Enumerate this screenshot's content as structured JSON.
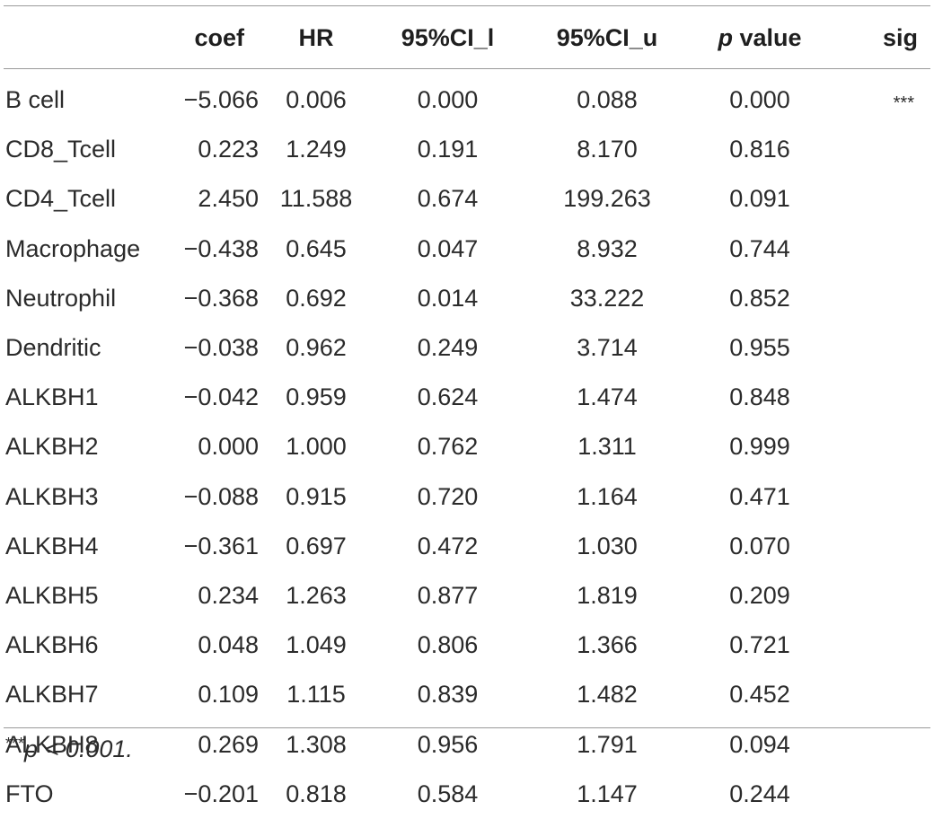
{
  "table": {
    "headers": {
      "name": "",
      "coef": "coef",
      "hr": "HR",
      "ci_l": "95%CI_l",
      "ci_u": "95%CI_u",
      "p_italic": "p",
      "p_rest": " value",
      "sig": "sig"
    },
    "rows": [
      {
        "name": "B cell",
        "coef": "−5.066",
        "hr": "0.006",
        "ci_l": "0.000",
        "ci_u": "0.088",
        "p": "0.000",
        "sig": "***"
      },
      {
        "name": "CD8_Tcell",
        "coef": "0.223",
        "hr": "1.249",
        "ci_l": "0.191",
        "ci_u": "8.170",
        "p": "0.816",
        "sig": ""
      },
      {
        "name": "CD4_Tcell",
        "coef": "2.450",
        "hr": "11.588",
        "ci_l": "0.674",
        "ci_u": "199.263",
        "p": "0.091",
        "sig": ""
      },
      {
        "name": "Macrophage",
        "coef": "−0.438",
        "hr": "0.645",
        "ci_l": "0.047",
        "ci_u": "8.932",
        "p": "0.744",
        "sig": ""
      },
      {
        "name": "Neutrophil",
        "coef": "−0.368",
        "hr": "0.692",
        "ci_l": "0.014",
        "ci_u": "33.222",
        "p": "0.852",
        "sig": ""
      },
      {
        "name": "Dendritic",
        "coef": "−0.038",
        "hr": "0.962",
        "ci_l": "0.249",
        "ci_u": "3.714",
        "p": "0.955",
        "sig": ""
      },
      {
        "name": "ALKBH1",
        "coef": "−0.042",
        "hr": "0.959",
        "ci_l": "0.624",
        "ci_u": "1.474",
        "p": "0.848",
        "sig": ""
      },
      {
        "name": "ALKBH2",
        "coef": "0.000",
        "hr": "1.000",
        "ci_l": "0.762",
        "ci_u": "1.311",
        "p": "0.999",
        "sig": ""
      },
      {
        "name": "ALKBH3",
        "coef": "−0.088",
        "hr": "0.915",
        "ci_l": "0.720",
        "ci_u": "1.164",
        "p": "0.471",
        "sig": ""
      },
      {
        "name": "ALKBH4",
        "coef": "−0.361",
        "hr": "0.697",
        "ci_l": "0.472",
        "ci_u": "1.030",
        "p": "0.070",
        "sig": ""
      },
      {
        "name": "ALKBH5",
        "coef": "0.234",
        "hr": "1.263",
        "ci_l": "0.877",
        "ci_u": "1.819",
        "p": "0.209",
        "sig": ""
      },
      {
        "name": "ALKBH6",
        "coef": "0.048",
        "hr": "1.049",
        "ci_l": "0.806",
        "ci_u": "1.366",
        "p": "0.721",
        "sig": ""
      },
      {
        "name": "ALKBH7",
        "coef": "0.109",
        "hr": "1.115",
        "ci_l": "0.839",
        "ci_u": "1.482",
        "p": "0.452",
        "sig": ""
      },
      {
        "name": "ALKBH8",
        "coef": "0.269",
        "hr": "1.308",
        "ci_l": "0.956",
        "ci_u": "1.791",
        "p": "0.094",
        "sig": ""
      },
      {
        "name": "FTO",
        "coef": "−0.201",
        "hr": "0.818",
        "ci_l": "0.584",
        "ci_u": "1.147",
        "p": "0.244",
        "sig": ""
      }
    ]
  },
  "footnote": {
    "stars": "***",
    "text": "p < 0.001."
  },
  "colors": {
    "text": "#2b2b2b",
    "rule": "#9a9a9a",
    "background": "#ffffff"
  }
}
